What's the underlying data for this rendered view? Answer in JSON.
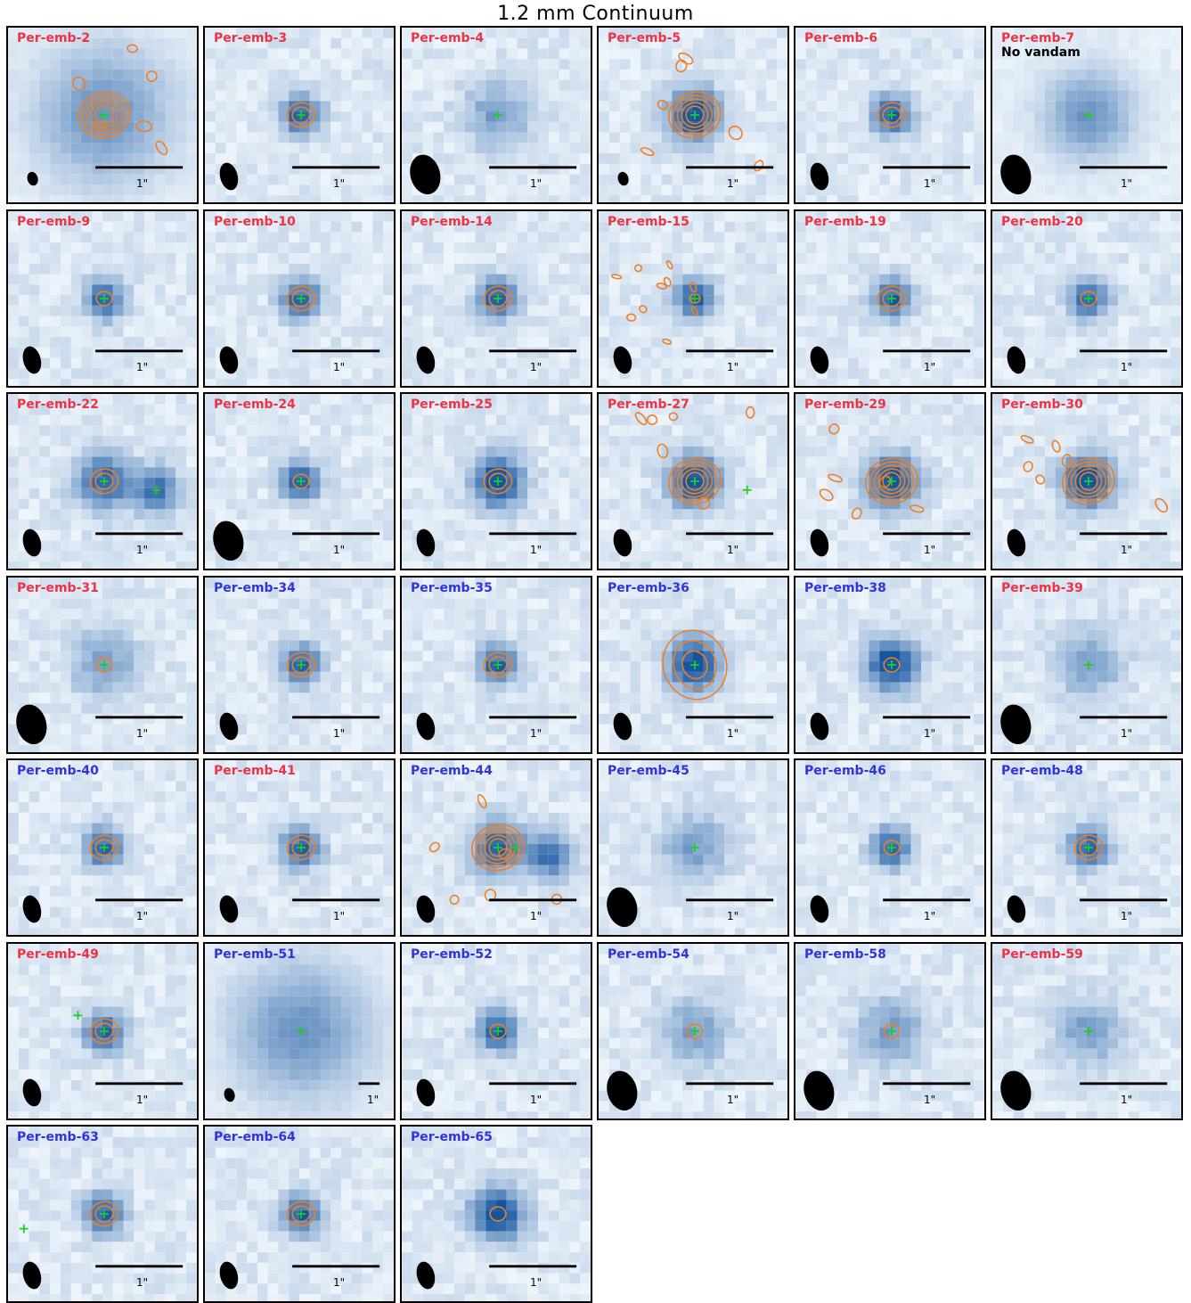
{
  "figure": {
    "title": "1.2 mm Continuum",
    "scale_text": "1\"",
    "colors": {
      "red_label": "#ee3344",
      "blue_label": "#3333dd",
      "contour": "#ee7f22",
      "marker": "#22cc22"
    }
  },
  "panels": [
    {
      "name": "Per-emb-2",
      "color": "red",
      "note": "",
      "style": "diffuse",
      "cross": [
        0
      ],
      "beam": "small",
      "contours": "many"
    },
    {
      "name": "Per-emb-3",
      "color": "red",
      "note": "",
      "style": "compact",
      "cross": [
        0
      ],
      "beam": "medium",
      "contours": "pair"
    },
    {
      "name": "Per-emb-4",
      "color": "red",
      "note": "",
      "style": "faint",
      "cross": [
        0
      ],
      "beam": "large",
      "contours": "none"
    },
    {
      "name": "Per-emb-5",
      "color": "red",
      "note": "",
      "style": "strong",
      "cross": [
        0
      ],
      "beam": "small",
      "contours": "many"
    },
    {
      "name": "Per-emb-6",
      "color": "red",
      "note": "",
      "style": "compact",
      "cross": [
        0
      ],
      "beam": "medium",
      "contours": "pair"
    },
    {
      "name": "Per-emb-7",
      "color": "red",
      "note": "No vandam",
      "style": "smooth",
      "cross": [
        0
      ],
      "beam": "large",
      "contours": "none"
    },
    {
      "name": "Per-emb-9",
      "color": "red",
      "note": "",
      "style": "compact",
      "cross": [
        0
      ],
      "beam": "medium",
      "contours": "small"
    },
    {
      "name": "Per-emb-10",
      "color": "red",
      "note": "",
      "style": "compact",
      "cross": [
        0
      ],
      "beam": "medium",
      "contours": "pair"
    },
    {
      "name": "Per-emb-14",
      "color": "red",
      "note": "",
      "style": "compact",
      "cross": [
        0
      ],
      "beam": "medium",
      "contours": "pair"
    },
    {
      "name": "Per-emb-15",
      "color": "red",
      "note": "",
      "style": "compact",
      "cross": [
        0
      ],
      "beam": "medium",
      "contours": "scattered"
    },
    {
      "name": "Per-emb-19",
      "color": "red",
      "note": "",
      "style": "compact",
      "cross": [
        0
      ],
      "beam": "medium",
      "contours": "pair"
    },
    {
      "name": "Per-emb-20",
      "color": "red",
      "note": "",
      "style": "compact",
      "cross": [
        0
      ],
      "beam": "medium",
      "contours": "small"
    },
    {
      "name": "Per-emb-22",
      "color": "red",
      "note": "",
      "style": "binary",
      "cross": [
        0,
        1
      ],
      "beam": "medium",
      "contours": "pair"
    },
    {
      "name": "Per-emb-24",
      "color": "red",
      "note": "",
      "style": "compact",
      "cross": [
        0
      ],
      "beam": "large",
      "contours": "small"
    },
    {
      "name": "Per-emb-25",
      "color": "red",
      "note": "",
      "style": "strong",
      "cross": [
        0
      ],
      "beam": "medium",
      "contours": "pair"
    },
    {
      "name": "Per-emb-27",
      "color": "red",
      "note": "",
      "style": "strong",
      "cross": [
        0,
        1
      ],
      "beam": "medium",
      "contours": "many"
    },
    {
      "name": "Per-emb-29",
      "color": "red",
      "note": "",
      "style": "strong",
      "cross": [
        0
      ],
      "beam": "medium",
      "contours": "many"
    },
    {
      "name": "Per-emb-30",
      "color": "red",
      "note": "",
      "style": "strong",
      "cross": [
        0
      ],
      "beam": "medium",
      "contours": "many"
    },
    {
      "name": "Per-emb-31",
      "color": "red",
      "note": "",
      "style": "faint",
      "cross": [
        0
      ],
      "beam": "large",
      "contours": "small"
    },
    {
      "name": "Per-emb-34",
      "color": "blue",
      "note": "",
      "style": "compact",
      "cross": [
        0
      ],
      "beam": "medium",
      "contours": "pair"
    },
    {
      "name": "Per-emb-35",
      "color": "blue",
      "note": "",
      "style": "compact",
      "cross": [
        0
      ],
      "beam": "medium",
      "contours": "pair"
    },
    {
      "name": "Per-emb-36",
      "color": "blue",
      "note": "",
      "style": "strong",
      "cross": [
        0
      ],
      "beam": "medium",
      "contours": "big"
    },
    {
      "name": "Per-emb-38",
      "color": "blue",
      "note": "",
      "style": "strong",
      "cross": [
        0
      ],
      "beam": "medium",
      "contours": "small"
    },
    {
      "name": "Per-emb-39",
      "color": "red",
      "note": "",
      "style": "faint",
      "cross": [
        0
      ],
      "beam": "large",
      "contours": "none"
    },
    {
      "name": "Per-emb-40",
      "color": "blue",
      "note": "",
      "style": "compact",
      "cross": [
        0
      ],
      "beam": "medium",
      "contours": "pair"
    },
    {
      "name": "Per-emb-41",
      "color": "red",
      "note": "",
      "style": "compact",
      "cross": [
        0
      ],
      "beam": "medium",
      "contours": "pair"
    },
    {
      "name": "Per-emb-44",
      "color": "blue",
      "note": "",
      "style": "binary",
      "cross": [
        0,
        2
      ],
      "beam": "medium",
      "contours": "many"
    },
    {
      "name": "Per-emb-45",
      "color": "blue",
      "note": "",
      "style": "faint",
      "cross": [
        0
      ],
      "beam": "large",
      "contours": "none"
    },
    {
      "name": "Per-emb-46",
      "color": "blue",
      "note": "",
      "style": "compact",
      "cross": [
        0
      ],
      "beam": "medium",
      "contours": "small"
    },
    {
      "name": "Per-emb-48",
      "color": "blue",
      "note": "",
      "style": "compact",
      "cross": [
        0
      ],
      "beam": "medium",
      "contours": "pair"
    },
    {
      "name": "Per-emb-49",
      "color": "red",
      "note": "",
      "style": "compact",
      "cross": [
        0,
        3
      ],
      "beam": "medium",
      "contours": "pair"
    },
    {
      "name": "Per-emb-51",
      "color": "blue",
      "note": "",
      "style": "diffuse",
      "cross": [
        0
      ],
      "beam": "small",
      "contours": "none"
    },
    {
      "name": "Per-emb-52",
      "color": "blue",
      "note": "",
      "style": "compact",
      "cross": [
        0
      ],
      "beam": "medium",
      "contours": "small"
    },
    {
      "name": "Per-emb-54",
      "color": "blue",
      "note": "",
      "style": "faint",
      "cross": [
        0
      ],
      "beam": "large",
      "contours": "small"
    },
    {
      "name": "Per-emb-58",
      "color": "blue",
      "note": "",
      "style": "faint",
      "cross": [
        0
      ],
      "beam": "large",
      "contours": "small"
    },
    {
      "name": "Per-emb-59",
      "color": "red",
      "note": "",
      "style": "faint",
      "cross": [
        0
      ],
      "beam": "large",
      "contours": "none"
    },
    {
      "name": "Per-emb-63",
      "color": "blue",
      "note": "",
      "style": "compact",
      "cross": [
        0,
        4
      ],
      "beam": "medium",
      "contours": "pair"
    },
    {
      "name": "Per-emb-64",
      "color": "blue",
      "note": "",
      "style": "compact",
      "cross": [
        0
      ],
      "beam": "medium",
      "contours": "pair"
    },
    {
      "name": "Per-emb-65",
      "color": "blue",
      "note": "",
      "style": "strong",
      "cross": [],
      "beam": "medium",
      "contours": "small"
    }
  ]
}
